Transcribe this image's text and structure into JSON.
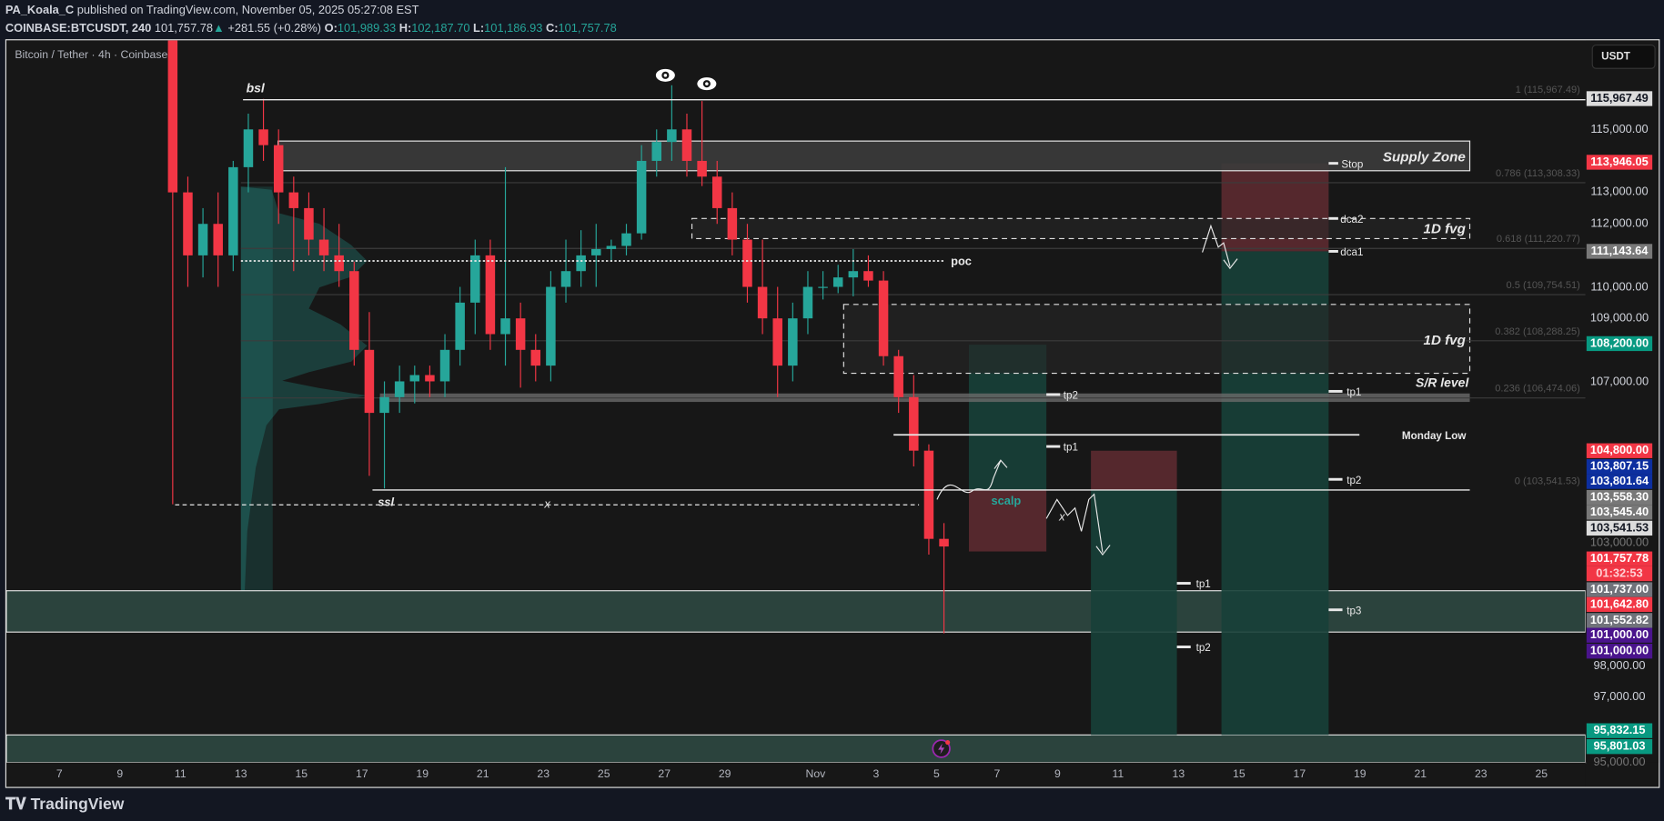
{
  "header": {
    "author": "PA_Koala_C",
    "published": "published on TradingView.com, November 05, 2025 05:27:08 EST",
    "symbol": "COINBASE:BTCUSDT, 240",
    "last": "101,757.78",
    "change": "+281.55 (+0.28%)",
    "o_label": "O:",
    "o": "101,989.33",
    "h_label": "H:",
    "h": "102,187.70",
    "l_label": "L:",
    "l": "101,186.93",
    "c_label": "C:",
    "c": "101,757.78"
  },
  "legend": {
    "title": "Bitcoin / Tether · 4h · Coinbase",
    "currency": "USDT"
  },
  "footer": {
    "brand": "TradingView"
  },
  "colors": {
    "up": "#26a69a",
    "down": "#f23645",
    "bg": "#171717",
    "zone": "#2b433d",
    "risk": "#5c2a30",
    "reward": "#174039"
  },
  "chart_data": {
    "type": "candlestick",
    "interval": "4h",
    "ylim": [
      94800,
      117500
    ],
    "candles_note_columns": [
      "time",
      "open",
      "high",
      "low",
      "close"
    ],
    "candles": [
      [
        "2025-10-10T12",
        121500,
        122500,
        103100,
        113000
      ],
      [
        "2025-10-11T00",
        113000,
        113500,
        110000,
        111000
      ],
      [
        "2025-10-11T12",
        111000,
        112500,
        110300,
        112000
      ],
      [
        "2025-10-12T00",
        112000,
        113000,
        110000,
        111000
      ],
      [
        "2025-10-12T12",
        111000,
        114000,
        110500,
        113800
      ],
      [
        "2025-10-13T00",
        113800,
        115500,
        113000,
        115000
      ],
      [
        "2025-10-13T12",
        115000,
        115967,
        114000,
        114500
      ],
      [
        "2025-10-14T00",
        114500,
        115000,
        112000,
        113000
      ],
      [
        "2025-10-14T12",
        113000,
        113500,
        110500,
        112500
      ],
      [
        "2025-10-15T00",
        112500,
        113000,
        111000,
        111500
      ],
      [
        "2025-10-15T12",
        111500,
        112500,
        110500,
        111000
      ],
      [
        "2025-10-16T00",
        111000,
        112000,
        110000,
        110500
      ],
      [
        "2025-10-16T12",
        110500,
        110800,
        107500,
        108000
      ],
      [
        "2025-10-17T00",
        108000,
        109200,
        104000,
        106000
      ],
      [
        "2025-10-17T12",
        106000,
        107000,
        103600,
        106500
      ],
      [
        "2025-10-18T00",
        106500,
        107500,
        106000,
        107000
      ],
      [
        "2025-10-18T12",
        107000,
        107500,
        106300,
        107200
      ],
      [
        "2025-10-19T00",
        107200,
        107500,
        106500,
        107000
      ],
      [
        "2025-10-19T12",
        107000,
        108500,
        106500,
        108000
      ],
      [
        "2025-10-20T00",
        108000,
        110000,
        107500,
        109500
      ],
      [
        "2025-10-20T12",
        109500,
        111500,
        108500,
        111000
      ],
      [
        "2025-10-21T00",
        111000,
        111500,
        108000,
        108500
      ],
      [
        "2025-10-21T12",
        108500,
        113800,
        107500,
        109000
      ],
      [
        "2025-10-22T00",
        109000,
        109500,
        106800,
        108000
      ],
      [
        "2025-10-22T12",
        108000,
        108500,
        107000,
        107500
      ],
      [
        "2025-10-23T00",
        107500,
        110500,
        107000,
        110000
      ],
      [
        "2025-10-23T12",
        110000,
        111500,
        109500,
        110500
      ],
      [
        "2025-10-24T00",
        110500,
        111800,
        110000,
        111000
      ],
      [
        "2025-10-24T12",
        111000,
        112000,
        110000,
        111200
      ],
      [
        "2025-10-25T00",
        111200,
        111500,
        110800,
        111300
      ],
      [
        "2025-10-25T12",
        111300,
        112000,
        111000,
        111700
      ],
      [
        "2025-10-26T00",
        111700,
        114500,
        111500,
        114000
      ],
      [
        "2025-10-26T12",
        114000,
        115000,
        113500,
        114600
      ],
      [
        "2025-10-27T00",
        114600,
        116400,
        114000,
        115000
      ],
      [
        "2025-10-27T12",
        115000,
        115500,
        113500,
        114000
      ],
      [
        "2025-10-28T00",
        114000,
        115900,
        113200,
        113500
      ],
      [
        "2025-10-28T12",
        113500,
        114000,
        112000,
        112500
      ],
      [
        "2025-10-29T00",
        112500,
        113000,
        111000,
        111500
      ],
      [
        "2025-10-29T12",
        111500,
        112000,
        109500,
        110000
      ],
      [
        "2025-10-30T00",
        110000,
        111500,
        108500,
        109000
      ],
      [
        "2025-10-30T12",
        109000,
        110000,
        106500,
        107500
      ],
      [
        "2025-10-31T00",
        107500,
        109500,
        107000,
        109000
      ],
      [
        "2025-10-31T12",
        109000,
        110500,
        108500,
        110000
      ],
      [
        "2025-11-01T00",
        110000,
        110500,
        109600,
        110000
      ],
      [
        "2025-11-01T12",
        110000,
        110700,
        109800,
        110300
      ],
      [
        "2025-11-02T00",
        110300,
        111200,
        109700,
        110500
      ],
      [
        "2025-11-02T12",
        110500,
        111000,
        110000,
        110200
      ],
      [
        "2025-11-03T00",
        110200,
        110500,
        107500,
        107800
      ],
      [
        "2025-11-03T12",
        107800,
        108000,
        106000,
        106500
      ],
      [
        "2025-11-04T00",
        106500,
        107200,
        104300,
        104800
      ],
      [
        "2025-11-04T12",
        104800,
        105000,
        101500,
        102000
      ],
      [
        "2025-11-05T00",
        102000,
        102500,
        99000,
        101757.78
      ]
    ],
    "x_ticks": [
      {
        "label": "7",
        "date": "2025-10-07"
      },
      {
        "label": "9",
        "date": "2025-10-09"
      },
      {
        "label": "11",
        "date": "2025-10-11"
      },
      {
        "label": "13",
        "date": "2025-10-13"
      },
      {
        "label": "15",
        "date": "2025-10-15"
      },
      {
        "label": "17",
        "date": "2025-10-17"
      },
      {
        "label": "19",
        "date": "2025-10-19"
      },
      {
        "label": "21",
        "date": "2025-10-21"
      },
      {
        "label": "23",
        "date": "2025-10-23"
      },
      {
        "label": "25",
        "date": "2025-10-25"
      },
      {
        "label": "27",
        "date": "2025-10-27"
      },
      {
        "label": "29",
        "date": "2025-10-29"
      },
      {
        "label": "Nov",
        "date": "2025-11-01"
      },
      {
        "label": "3",
        "date": "2025-11-03"
      },
      {
        "label": "5",
        "date": "2025-11-05"
      },
      {
        "label": "7",
        "date": "2025-11-07"
      },
      {
        "label": "9",
        "date": "2025-11-09"
      },
      {
        "label": "11",
        "date": "2025-11-11"
      },
      {
        "label": "13",
        "date": "2025-11-13"
      },
      {
        "label": "15",
        "date": "2025-11-15"
      },
      {
        "label": "17",
        "date": "2025-11-17"
      },
      {
        "label": "19",
        "date": "2025-11-19"
      },
      {
        "label": "21",
        "date": "2025-11-21"
      },
      {
        "label": "23",
        "date": "2025-11-23"
      },
      {
        "label": "25",
        "date": "2025-11-25"
      }
    ],
    "price_axis": [
      {
        "text": "115,967.49",
        "price": 115967.49,
        "bg": "#dcdcdc",
        "fg": "#131722"
      },
      {
        "text": "115,000.00",
        "price": 115000
      },
      {
        "text": "113,946.05",
        "price": 113946.05,
        "bg": "#f23645",
        "fg": "#ffffff"
      },
      {
        "text": "113,000.00",
        "price": 113000
      },
      {
        "text": "112,000.00",
        "price": 112000
      },
      {
        "text": "111,143.64",
        "price": 111143.64,
        "bg": "#787878",
        "fg": "#ffffff"
      },
      {
        "text": "110,000.00",
        "price": 110000
      },
      {
        "text": "109,000.00",
        "price": 109000
      },
      {
        "text": "108,200.00",
        "price": 108200,
        "bg": "#089981",
        "fg": "#ffffff"
      },
      {
        "text": "107,000.00",
        "price": 107000
      },
      {
        "text": "104,800.00",
        "price": 104800,
        "bg": "#f23645",
        "fg": "#ffffff"
      },
      {
        "text": "103,807.15",
        "price": 104300,
        "bg": "#0d2f9f",
        "fg": "#ffffff"
      },
      {
        "text": "103,801.64",
        "price": 103830,
        "bg": "#0d2f9f",
        "fg": "#ffffff"
      },
      {
        "text": "103,558.30",
        "price": 103360,
        "bg": "#787878",
        "fg": "#ffffff"
      },
      {
        "text": "103,545.40",
        "price": 102890,
        "bg": "#787878",
        "fg": "#ffffff"
      },
      {
        "text": "103,541.53",
        "price": 103541.53,
        "bg": "#dcdcdc",
        "fg": "#131722",
        "pin": true
      },
      {
        "text": "103,000.00",
        "price": 102950,
        "muted": true
      },
      {
        "text": "101,757.78",
        "price": 101757.78,
        "bg": "#f23645",
        "fg": "#ffffff"
      },
      {
        "text": "01:32:53",
        "price": 101320,
        "bg": "#f23645",
        "fg": "#ffd0d4"
      },
      {
        "text": "101,737.00",
        "price": 100880,
        "bg": "#70727a",
        "fg": "#ffffff"
      },
      {
        "text": "101,642.80",
        "price": 100350,
        "bg": "#f23645",
        "fg": "#ffffff"
      },
      {
        "text": "101,552.82",
        "price": 99880,
        "bg": "#70727a",
        "fg": "#ffffff"
      },
      {
        "text": "101,000.00",
        "price": 99410,
        "bg": "#4a148c",
        "fg": "#ffffff"
      },
      {
        "text": "101,000.00",
        "price": 98900,
        "bg": "#4a148c",
        "fg": "#ffffff"
      },
      {
        "text": "98,000.00",
        "price": 98000
      },
      {
        "text": "97,000.00",
        "price": 97000
      },
      {
        "text": "95,832.15",
        "price": 95900,
        "bg": "#089981",
        "fg": "#ffffff"
      },
      {
        "text": "95,801.03",
        "price": 95400,
        "bg": "#089981",
        "fg": "#ffffff"
      },
      {
        "text": "95,000.00",
        "price": 94930,
        "muted": true
      }
    ],
    "fib_levels": [
      {
        "text": "1 (115,967.49)",
        "price": 115967.49
      },
      {
        "text": "0.786 (113,308.33)",
        "price": 113308.33
      },
      {
        "text": "0.618 (111,220.77)",
        "price": 111220.77
      },
      {
        "text": "0.5 (109,754.51)",
        "price": 109754.51
      },
      {
        "text": "0.382 (108,288.25)",
        "price": 108288.25
      },
      {
        "text": "0.236 (106,474.06)",
        "price": 106474.06
      },
      {
        "text": "0 (103,541.53)",
        "price": 103541.53
      }
    ],
    "annotations": {
      "bsl": "bsl",
      "ssl": "ssl",
      "x1": "x",
      "x2": "x",
      "poc": "poc",
      "supply": "Supply Zone",
      "fvg1": "1D fvg",
      "fvg2": "1D fvg",
      "sr": "S/R level",
      "monday_low": "Monday Low",
      "scalp": "scalp",
      "a_tp2": "tp2",
      "a_tp1": "tp1",
      "b_tp1": "tp1",
      "b_tp2": "tp2",
      "c_stop": "Stop",
      "c_dca2": "dca2",
      "c_dca1": "dca1",
      "c_tp1": "tp1",
      "c_tp2": "tp2",
      "c_tp3": "tp3"
    }
  }
}
